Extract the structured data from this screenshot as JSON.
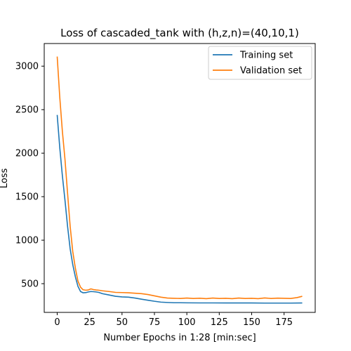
{
  "chart_data": {
    "type": "line",
    "title": "Loss of cascaded_tank with (h,z,n)=(40,10,1)",
    "xlabel": "Number Epochs in  1:28 [min:sec]",
    "ylabel": "Loss",
    "xlim": [
      -10,
      199
    ],
    "ylim": [
      170,
      3260
    ],
    "xticks": [
      0,
      25,
      50,
      75,
      100,
      125,
      150,
      175
    ],
    "yticks": [
      500,
      1000,
      1500,
      2000,
      2500,
      3000
    ],
    "grid": false,
    "legend_position": "top-right",
    "series": [
      {
        "name": "Training set",
        "color": "#1f77b4",
        "x": [
          0,
          2,
          4,
          6,
          8,
          10,
          12,
          14,
          16,
          18,
          20,
          22,
          24,
          26,
          28,
          30,
          32,
          35,
          40,
          45,
          50,
          55,
          60,
          65,
          70,
          75,
          80,
          85,
          90,
          95,
          100,
          110,
          120,
          130,
          140,
          150,
          160,
          170,
          180,
          189
        ],
        "y": [
          2440,
          2060,
          1740,
          1460,
          1160,
          900,
          720,
          580,
          470,
          410,
          395,
          397,
          405,
          410,
          408,
          405,
          400,
          385,
          370,
          355,
          348,
          345,
          335,
          322,
          310,
          298,
          288,
          284,
          281,
          281,
          280,
          279,
          279,
          278,
          278,
          278,
          277,
          277,
          277,
          278
        ]
      },
      {
        "name": "Validation set",
        "color": "#ff7f0e",
        "x": [
          0,
          2,
          4,
          6,
          8,
          10,
          12,
          14,
          16,
          18,
          20,
          22,
          24,
          26,
          28,
          30,
          32,
          35,
          40,
          45,
          50,
          55,
          60,
          65,
          70,
          75,
          80,
          85,
          90,
          95,
          100,
          105,
          110,
          115,
          120,
          125,
          130,
          135,
          140,
          145,
          150,
          155,
          160,
          165,
          170,
          175,
          180,
          185,
          189
        ],
        "y": [
          3110,
          2640,
          2250,
          1930,
          1540,
          1160,
          870,
          680,
          530,
          460,
          430,
          425,
          428,
          440,
          432,
          428,
          425,
          418,
          410,
          400,
          398,
          395,
          390,
          385,
          375,
          360,
          345,
          335,
          332,
          330,
          335,
          330,
          333,
          328,
          335,
          330,
          332,
          328,
          335,
          330,
          332,
          328,
          336,
          330,
          334,
          332,
          330,
          340,
          355
        ]
      }
    ]
  }
}
